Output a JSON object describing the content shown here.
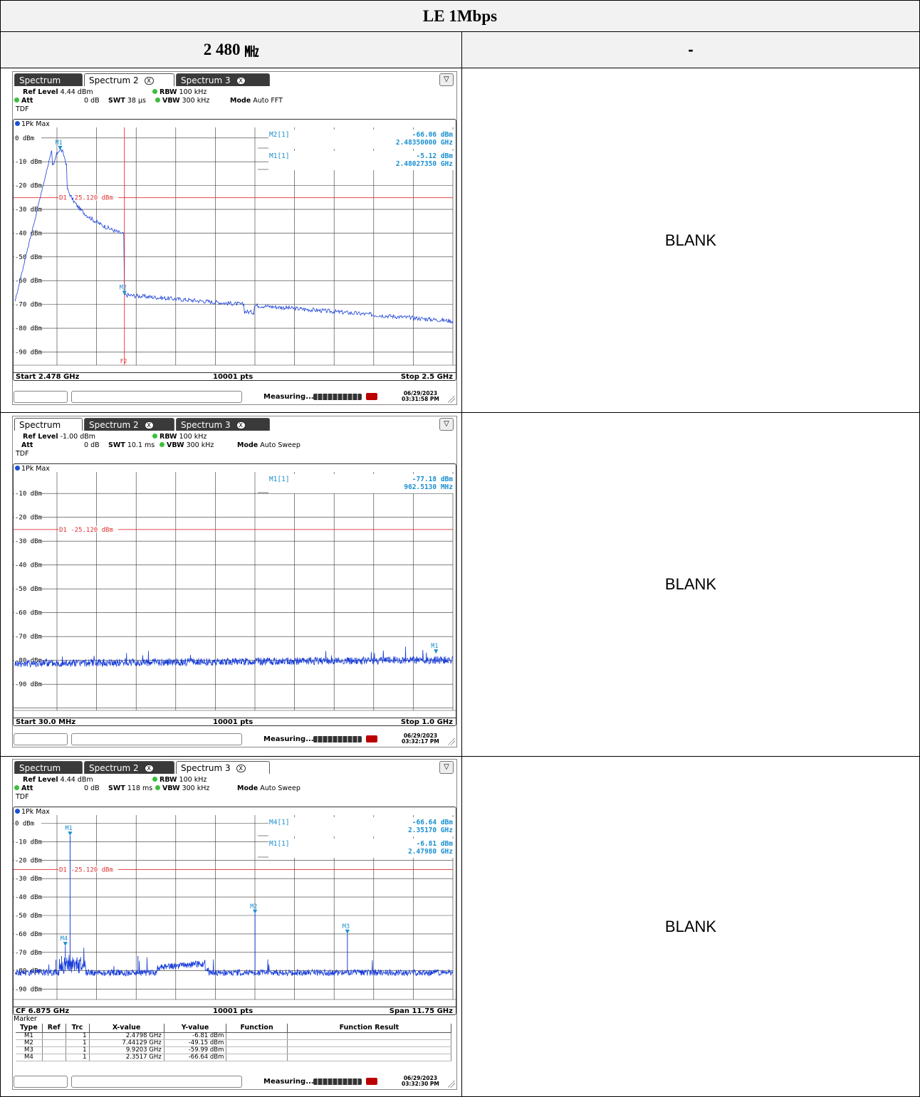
{
  "table": {
    "title": "LE 1Mbps",
    "freq_label": "2 480",
    "freq_unit": "㎒",
    "right_header": "-",
    "blank_texts": [
      "BLANK",
      "BLANK",
      "BLANK"
    ]
  },
  "screens": [
    {
      "tabs": [
        "Spectrum",
        "Spectrum 2",
        "Spectrum 3"
      ],
      "active_tab": 1,
      "tab_close": "X",
      "ref_level_label": "Ref Level",
      "ref_level": "4.44 dBm",
      "att_label": "Att",
      "att": "0 dB",
      "swt_label": "SWT",
      "swt": "38 µs",
      "rbw_label": "RBW",
      "rbw": "100 kHz",
      "vbw_label": "VBW",
      "vbw": "300 kHz",
      "mode_label": "Mode",
      "mode": "Auto FFT",
      "tdf": "TDF",
      "trace_label": "1Pk Max",
      "ylabels": [
        "0 dBm",
        "-10 dBm",
        "-20 dBm",
        "-30 dBm",
        "-40 dBm",
        "-50 dBm",
        "-60 dBm",
        "-70 dBm",
        "-80 dBm",
        "-90 dBm"
      ],
      "display_line": "D1  -25.120 dBm",
      "freq_line_label": "F2",
      "marker_readouts": [
        {
          "name": "M2[1]",
          "value": "-66.06 dBm",
          "freq": "2.48350000 GHz"
        },
        {
          "name": "M1[1]",
          "value": "-5.12 dBm",
          "freq": "2.48027350 GHz"
        }
      ],
      "markers": [
        {
          "label": "M1"
        },
        {
          "label": "M2"
        }
      ],
      "foot_left": "Start 2.478 GHz",
      "foot_center": "10001 pts",
      "foot_right": "Stop 2.5 GHz",
      "status": "Measuring...",
      "date": "06/29/2023",
      "time": "03:31:58 PM",
      "colors": {
        "trace": "#1a3fd9",
        "limit": "#e03030",
        "marker": "#1a8fd0"
      }
    },
    {
      "tabs": [
        "Spectrum",
        "Spectrum 2",
        "Spectrum 3"
      ],
      "active_tab": 0,
      "tab_close": "X",
      "ref_level_label": "Ref Level",
      "ref_level": "-1.00 dBm",
      "att_label": "Att",
      "att": "0 dB",
      "swt_label": "SWT",
      "swt": "10.1 ms",
      "rbw_label": "RBW",
      "rbw": "100 kHz",
      "vbw_label": "VBW",
      "vbw": "300 kHz",
      "mode_label": "Mode",
      "mode": "Auto Sweep",
      "tdf": "TDF",
      "trace_label": "1Pk Max",
      "ylabels": [
        "-10 dBm",
        "-20 dBm",
        "-30 dBm",
        "-40 dBm",
        "-50 dBm",
        "-60 dBm",
        "-70 dBm",
        "-80 dBm",
        "-90 dBm"
      ],
      "display_line": "D1  -25.120 dBm",
      "marker_readouts": [
        {
          "name": "M1[1]",
          "value": "-77.18 dBm",
          "freq": "962.5130 MHz"
        }
      ],
      "markers": [
        {
          "label": "M1"
        }
      ],
      "foot_left": "Start 30.0 MHz",
      "foot_center": "10001 pts",
      "foot_right": "Stop 1.0 GHz",
      "status": "Measuring...",
      "date": "06/29/2023",
      "time": "03:32:17 PM",
      "colors": {
        "trace": "#1a3fd9",
        "limit": "#e03030",
        "marker": "#1a8fd0"
      }
    },
    {
      "tabs": [
        "Spectrum",
        "Spectrum 2",
        "Spectrum 3"
      ],
      "active_tab": 2,
      "tab_close": "X",
      "ref_level_label": "Ref Level",
      "ref_level": "4.44 dBm",
      "att_label": "Att",
      "att": "0 dB",
      "swt_label": "SWT",
      "swt": "118 ms",
      "rbw_label": "RBW",
      "rbw": "100 kHz",
      "vbw_label": "VBW",
      "vbw": "300 kHz",
      "mode_label": "Mode",
      "mode": "Auto Sweep",
      "tdf": "TDF",
      "trace_label": "1Pk Max",
      "ylabels": [
        "0 dBm",
        "-10 dBm",
        "-20 dBm",
        "-30 dBm",
        "-40 dBm",
        "-50 dBm",
        "-60 dBm",
        "-70 dBm",
        "-80 dBm",
        "-90 dBm"
      ],
      "display_line": "D1  -25.120 dBm",
      "marker_readouts": [
        {
          "name": "M4[1]",
          "value": "-66.64 dBm",
          "freq": "2.35170 GHz"
        },
        {
          "name": "M1[1]",
          "value": "-6.81 dBm",
          "freq": "2.47980 GHz"
        }
      ],
      "markers": [
        {
          "label": "M1"
        },
        {
          "label": "M2"
        },
        {
          "label": "M3"
        },
        {
          "label": "M4"
        }
      ],
      "foot_left": "CF 6.875 GHz",
      "foot_center": "10001 pts",
      "foot_right": "Span 11.75 GHz",
      "marker_table": {
        "title": "Marker",
        "headers": [
          "Type",
          "Ref",
          "Trc",
          "X-value",
          "Y-value",
          "Function",
          "Function Result"
        ],
        "rows": [
          [
            "M1",
            "",
            "1",
            "2.4798 GHz",
            "-6.81 dBm",
            "",
            ""
          ],
          [
            "M2",
            "",
            "1",
            "7.44129 GHz",
            "-49.15 dBm",
            "",
            ""
          ],
          [
            "M3",
            "",
            "1",
            "9.9203 GHz",
            "-59.99 dBm",
            "",
            ""
          ],
          [
            "M4",
            "",
            "1",
            "2.3517 GHz",
            "-66.64 dBm",
            "",
            ""
          ]
        ]
      },
      "status": "Measuring...",
      "date": "06/29/2023",
      "time": "03:32:30 PM",
      "colors": {
        "trace": "#1a3fd9",
        "limit": "#e03030",
        "marker": "#1a8fd0"
      }
    }
  ]
}
